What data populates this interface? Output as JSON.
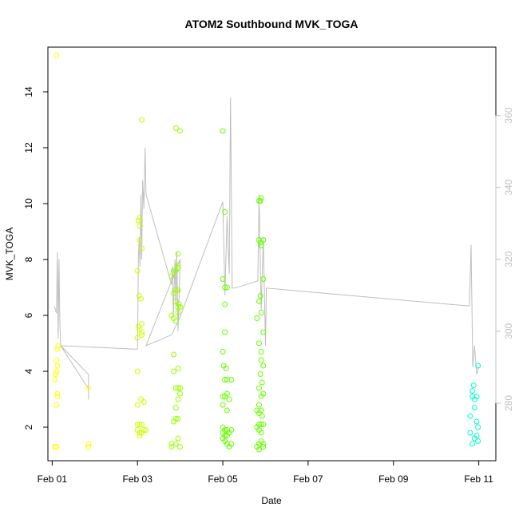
{
  "chart_data": {
    "type": "scatter",
    "title": "ATOM2 Southbound MVK_TOGA",
    "xlabel": "Date",
    "ylabel": "MVK_TOGA",
    "x_ticks": [
      "Feb 01",
      "Feb 03",
      "Feb 05",
      "Feb 07",
      "Feb 09",
      "Feb 11"
    ],
    "xlim_days": [
      0.9,
      11.4
    ],
    "y_ticks": [
      "2",
      "4",
      "6",
      "8",
      "10",
      "12",
      "14"
    ],
    "ylim": [
      0.8,
      15.6
    ],
    "y2_ticks": [
      "280",
      "300",
      "320",
      "340",
      "360"
    ],
    "y2lim": [
      264,
      379
    ],
    "grid": false,
    "line_color": "#bebebe",
    "point_color_scale": [
      "#ffff00",
      "#ccff00",
      "#99ff00",
      "#66ff00",
      "#33ff00",
      "#00ff33",
      "#00ff99",
      "#00ffcc"
    ],
    "points": [
      [
        1.06,
        1.3
      ],
      [
        1.1,
        1.3
      ],
      [
        1.06,
        3.7
      ],
      [
        1.08,
        3.9
      ],
      [
        1.1,
        4.0
      ],
      [
        1.1,
        4.4
      ],
      [
        1.12,
        4.2
      ],
      [
        1.12,
        4.8
      ],
      [
        1.14,
        4.9
      ],
      [
        1.12,
        3.2
      ],
      [
        1.12,
        3.1
      ],
      [
        1.1,
        2.8
      ],
      [
        1.1,
        15.3
      ],
      [
        1.85,
        1.3
      ],
      [
        1.85,
        1.4
      ],
      [
        1.85,
        3.4
      ],
      [
        3.0,
        4.0
      ],
      [
        3.0,
        7.6
      ],
      [
        3.02,
        9.4
      ],
      [
        3.05,
        9.5
      ],
      [
        3.05,
        8.7
      ],
      [
        3.1,
        8.4
      ],
      [
        3.06,
        9.2
      ],
      [
        3.04,
        6.7
      ],
      [
        3.08,
        6.6
      ],
      [
        3.02,
        5.6
      ],
      [
        3.05,
        5.5
      ],
      [
        3.1,
        5.7
      ],
      [
        3.1,
        5.3
      ],
      [
        3.0,
        5.2
      ],
      [
        3.1,
        5.4
      ],
      [
        3.0,
        2.8
      ],
      [
        3.08,
        3.0
      ],
      [
        3.15,
        2.9
      ],
      [
        3.0,
        2.1
      ],
      [
        3.05,
        2.1
      ],
      [
        3.1,
        2.1
      ],
      [
        3.0,
        1.9
      ],
      [
        3.05,
        1.8
      ],
      [
        3.1,
        1.8
      ],
      [
        3.15,
        1.9
      ],
      [
        3.2,
        1.9
      ],
      [
        3.05,
        1.7
      ],
      [
        3.1,
        13.0
      ],
      [
        3.8,
        7.4
      ],
      [
        3.85,
        7.6
      ],
      [
        3.9,
        7.6
      ],
      [
        3.95,
        7.7
      ],
      [
        3.95,
        8.2
      ],
      [
        3.95,
        7.8
      ],
      [
        3.9,
        6.9
      ],
      [
        3.85,
        6.8
      ],
      [
        3.95,
        6.9
      ],
      [
        3.9,
        6.5
      ],
      [
        3.95,
        6.3
      ],
      [
        3.97,
        6.4
      ],
      [
        4.0,
        6.3
      ],
      [
        3.8,
        6.0
      ],
      [
        3.85,
        5.9
      ],
      [
        3.9,
        5.8
      ],
      [
        3.95,
        6.1
      ],
      [
        3.85,
        4.6
      ],
      [
        3.85,
        4.0
      ],
      [
        3.95,
        4.1
      ],
      [
        3.9,
        3.4
      ],
      [
        3.95,
        3.4
      ],
      [
        4.0,
        3.4
      ],
      [
        3.95,
        3.0
      ],
      [
        4.0,
        3.2
      ],
      [
        3.9,
        2.7
      ],
      [
        3.9,
        2.3
      ],
      [
        3.95,
        2.3
      ],
      [
        3.85,
        2.2
      ],
      [
        3.8,
        1.4
      ],
      [
        3.8,
        1.3
      ],
      [
        3.9,
        1.4
      ],
      [
        3.95,
        1.6
      ],
      [
        4.0,
        1.3
      ],
      [
        3.9,
        12.7
      ],
      [
        4.0,
        12.6
      ],
      [
        5.0,
        12.6
      ],
      [
        5.05,
        9.7
      ],
      [
        5.0,
        7.3
      ],
      [
        5.05,
        7.0
      ],
      [
        5.1,
        7.0
      ],
      [
        5.05,
        6.4
      ],
      [
        5.05,
        5.4
      ],
      [
        5.0,
        4.7
      ],
      [
        5.02,
        4.2
      ],
      [
        5.08,
        4.1
      ],
      [
        5.05,
        3.7
      ],
      [
        5.1,
        3.7
      ],
      [
        5.2,
        3.7
      ],
      [
        5.0,
        3.1
      ],
      [
        5.05,
        3.1
      ],
      [
        5.1,
        3.2
      ],
      [
        5.15,
        3.0
      ],
      [
        5.0,
        2.8
      ],
      [
        5.1,
        2.6
      ],
      [
        5.0,
        2.0
      ],
      [
        5.05,
        1.9
      ],
      [
        5.1,
        1.9
      ],
      [
        5.2,
        1.9
      ],
      [
        5.0,
        1.8
      ],
      [
        5.05,
        1.7
      ],
      [
        5.1,
        1.7
      ],
      [
        5.15,
        1.8
      ],
      [
        5.0,
        1.6
      ],
      [
        5.05,
        1.5
      ],
      [
        5.1,
        1.4
      ],
      [
        5.2,
        1.4
      ],
      [
        5.15,
        1.3
      ],
      [
        5.85,
        10.1
      ],
      [
        5.9,
        10.2
      ],
      [
        5.88,
        10.1
      ],
      [
        5.85,
        8.7
      ],
      [
        5.88,
        8.6
      ],
      [
        5.9,
        8.5
      ],
      [
        5.95,
        8.7
      ],
      [
        5.95,
        7.3
      ],
      [
        5.88,
        6.7
      ],
      [
        5.85,
        6.5
      ],
      [
        5.9,
        6.1
      ],
      [
        5.8,
        5.9
      ],
      [
        5.95,
        5.4
      ],
      [
        5.85,
        5.0
      ],
      [
        5.9,
        4.7
      ],
      [
        5.9,
        4.4
      ],
      [
        5.95,
        4.2
      ],
      [
        5.88,
        3.9
      ],
      [
        5.92,
        3.6
      ],
      [
        5.85,
        3.4
      ],
      [
        5.9,
        3.1
      ],
      [
        5.95,
        3.2
      ],
      [
        5.85,
        2.8
      ],
      [
        5.8,
        2.6
      ],
      [
        5.85,
        2.5
      ],
      [
        5.9,
        2.6
      ],
      [
        5.92,
        2.4
      ],
      [
        5.8,
        2.0
      ],
      [
        5.85,
        2.1
      ],
      [
        5.9,
        2.1
      ],
      [
        5.95,
        2.1
      ],
      [
        5.85,
        1.9
      ],
      [
        5.9,
        1.8
      ],
      [
        5.95,
        1.4
      ],
      [
        5.85,
        1.4
      ],
      [
        5.8,
        1.3
      ],
      [
        5.9,
        1.5
      ],
      [
        5.85,
        1.2
      ],
      [
        5.95,
        1.3
      ],
      [
        10.8,
        1.8
      ],
      [
        10.8,
        2.4
      ],
      [
        10.85,
        3.1
      ],
      [
        10.88,
        3.5
      ],
      [
        10.85,
        3.3
      ],
      [
        10.9,
        3.0
      ],
      [
        10.95,
        3.1
      ],
      [
        10.98,
        4.2
      ],
      [
        10.9,
        2.7
      ],
      [
        10.95,
        2.2
      ],
      [
        10.98,
        2.0
      ],
      [
        10.95,
        1.7
      ],
      [
        10.9,
        1.6
      ],
      [
        10.98,
        1.5
      ],
      [
        10.85,
        1.4
      ]
    ],
    "line": [
      [
        1.05,
        307
      ],
      [
        1.1,
        305
      ],
      [
        1.12,
        322
      ],
      [
        1.14,
        298
      ],
      [
        1.16,
        320
      ],
      [
        1.18,
        302
      ],
      [
        1.2,
        296
      ],
      [
        1.85,
        288
      ],
      [
        1.85,
        281
      ],
      [
        1.85,
        284
      ],
      [
        1.2,
        296
      ],
      [
        3.0,
        295
      ],
      [
        3.02,
        320
      ],
      [
        3.04,
        326
      ],
      [
        3.06,
        318
      ],
      [
        3.08,
        338
      ],
      [
        3.1,
        320
      ],
      [
        3.12,
        342
      ],
      [
        3.15,
        334
      ],
      [
        3.18,
        351
      ],
      [
        3.2,
        338
      ],
      [
        3.2,
        338
      ],
      [
        3.8,
        313
      ],
      [
        3.82,
        318
      ],
      [
        3.84,
        304
      ],
      [
        3.86,
        312
      ],
      [
        3.88,
        320
      ],
      [
        3.9,
        306
      ],
      [
        3.92,
        322
      ],
      [
        3.95,
        300
      ],
      [
        4.0,
        320
      ],
      [
        3.2,
        296
      ],
      [
        3.8,
        299
      ],
      [
        4.0,
        304
      ],
      [
        5.0,
        336
      ],
      [
        5.05,
        310
      ],
      [
        5.1,
        332
      ],
      [
        5.15,
        316
      ],
      [
        5.18,
        365
      ],
      [
        5.22,
        312
      ],
      [
        5.28,
        312
      ],
      [
        5.28,
        312
      ],
      [
        5.82,
        314
      ],
      [
        5.85,
        338
      ],
      [
        5.9,
        306
      ],
      [
        5.95,
        326
      ],
      [
        6.0,
        296
      ],
      [
        6.02,
        312
      ],
      [
        6.02,
        312
      ],
      [
        10.78,
        307
      ],
      [
        10.82,
        324
      ],
      [
        10.86,
        290
      ],
      [
        10.9,
        296
      ],
      [
        10.95,
        288
      ],
      [
        11.0,
        290
      ]
    ]
  }
}
